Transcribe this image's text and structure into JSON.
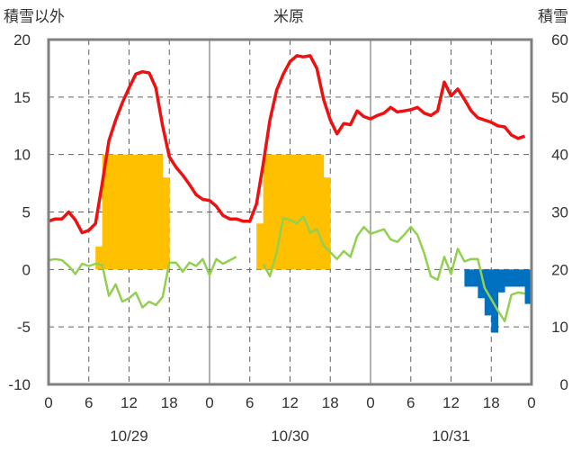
{
  "chart_data": {
    "type": "bar+line",
    "title": "米原",
    "left_axis_title": "積雪以外",
    "right_axis_title": "積雪",
    "left_ylim": [
      -10,
      20
    ],
    "left_yticks": [
      "20",
      "15",
      "10",
      "5",
      "0",
      "-5",
      "-10"
    ],
    "right_ylim": [
      0,
      60
    ],
    "right_yticks": [
      "60",
      "50",
      "40",
      "30",
      "20",
      "10",
      "0"
    ],
    "xlim_hours": [
      0,
      72
    ],
    "x_ticks": [
      {
        "hour": 0,
        "label": "0"
      },
      {
        "hour": 6,
        "label": "6"
      },
      {
        "hour": 12,
        "label": "12"
      },
      {
        "hour": 18,
        "label": "18"
      },
      {
        "hour": 24,
        "label": "0"
      },
      {
        "hour": 30,
        "label": "6"
      },
      {
        "hour": 36,
        "label": "12"
      },
      {
        "hour": 42,
        "label": "18"
      },
      {
        "hour": 48,
        "label": "0"
      },
      {
        "hour": 54,
        "label": "6"
      },
      {
        "hour": 60,
        "label": "12"
      },
      {
        "hour": 66,
        "label": "18"
      },
      {
        "hour": 72,
        "label": "0"
      }
    ],
    "dates": [
      {
        "hour": 12,
        "label": "10/29"
      },
      {
        "hour": 36,
        "label": "10/30"
      },
      {
        "hour": 60,
        "label": "10/31"
      }
    ],
    "grid": "dashed",
    "colors": {
      "temperature": "#ee1111",
      "green_line": "#92d050",
      "orange_bars": "#ffc000",
      "blue_bars": "#0070c0",
      "axis": "#808080",
      "grid": "#606060"
    },
    "temperature": [
      [
        0,
        4.2
      ],
      [
        1,
        4.4
      ],
      [
        2,
        4.4
      ],
      [
        3,
        5.0
      ],
      [
        4,
        4.3
      ],
      [
        5,
        3.2
      ],
      [
        6,
        3.4
      ],
      [
        7,
        4.0
      ],
      [
        8,
        7.5
      ],
      [
        9,
        11.2
      ],
      [
        10,
        13.0
      ],
      [
        11,
        14.5
      ],
      [
        12,
        15.8
      ],
      [
        13,
        17.0
      ],
      [
        14,
        17.2
      ],
      [
        15,
        17.1
      ],
      [
        16,
        15.8
      ],
      [
        17,
        12.5
      ],
      [
        18,
        9.8
      ],
      [
        19,
        8.9
      ],
      [
        20,
        8.2
      ],
      [
        21,
        7.4
      ],
      [
        22,
        6.5
      ],
      [
        23,
        6.1
      ],
      [
        24,
        6.0
      ],
      [
        25,
        5.5
      ],
      [
        26,
        4.7
      ],
      [
        27,
        4.4
      ],
      [
        28,
        4.4
      ],
      [
        29,
        4.2
      ],
      [
        30,
        4.2
      ],
      [
        31,
        5.7
      ],
      [
        32,
        9.2
      ],
      [
        33,
        13.0
      ],
      [
        34,
        15.6
      ],
      [
        35,
        17.0
      ],
      [
        36,
        18.1
      ],
      [
        37,
        18.6
      ],
      [
        38,
        18.5
      ],
      [
        39,
        18.6
      ],
      [
        40,
        17.5
      ],
      [
        41,
        14.8
      ],
      [
        42,
        13.0
      ],
      [
        43,
        11.8
      ],
      [
        44,
        12.7
      ],
      [
        45,
        12.6
      ],
      [
        46,
        13.8
      ],
      [
        47,
        13.3
      ],
      [
        48,
        13.1
      ],
      [
        49,
        13.4
      ],
      [
        50,
        13.6
      ],
      [
        51,
        14.1
      ],
      [
        52,
        13.7
      ],
      [
        53,
        13.8
      ],
      [
        54,
        13.9
      ],
      [
        55,
        14.1
      ],
      [
        56,
        13.6
      ],
      [
        57,
        13.4
      ],
      [
        58,
        13.8
      ],
      [
        59,
        16.3
      ],
      [
        60,
        15.1
      ],
      [
        61,
        15.7
      ],
      [
        62,
        14.8
      ],
      [
        63,
        13.8
      ],
      [
        64,
        13.2
      ],
      [
        65,
        13.0
      ],
      [
        66,
        12.8
      ],
      [
        67,
        12.5
      ],
      [
        68,
        12.4
      ],
      [
        69,
        11.7
      ],
      [
        70,
        11.4
      ],
      [
        71,
        11.6
      ]
    ],
    "green_line": [
      [
        [
          0,
          0.8
        ],
        [
          1,
          0.9
        ],
        [
          2,
          0.8
        ],
        [
          3,
          0.3
        ],
        [
          4,
          -0.4
        ],
        [
          5,
          0.5
        ],
        [
          6,
          0.3
        ],
        [
          7,
          0.5
        ],
        [
          8,
          0.4
        ],
        [
          9,
          -2.3
        ],
        [
          10,
          -1.3
        ],
        [
          11,
          -2.8
        ],
        [
          12,
          -2.5
        ],
        [
          13,
          -2.0
        ],
        [
          14,
          -3.3
        ],
        [
          15,
          -2.8
        ],
        [
          16,
          -3.1
        ],
        [
          17,
          -2.4
        ],
        [
          18,
          0.6
        ],
        [
          19,
          0.6
        ],
        [
          20,
          -0.2
        ],
        [
          21,
          0.6
        ],
        [
          22,
          0.3
        ],
        [
          23,
          0.9
        ],
        [
          24,
          -0.5
        ],
        [
          25,
          0.9
        ],
        [
          26,
          0.5
        ],
        [
          27,
          0.8
        ],
        [
          28,
          1.1
        ]
      ],
      [
        [
          32,
          0.5
        ],
        [
          33,
          -0.6
        ],
        [
          34,
          1.5
        ],
        [
          35,
          4.5
        ],
        [
          36,
          4.3
        ],
        [
          37,
          4.0
        ],
        [
          38,
          4.6
        ],
        [
          39,
          3.2
        ],
        [
          40,
          3.5
        ],
        [
          41,
          2.1
        ],
        [
          42,
          1.5
        ],
        [
          43,
          0.9
        ],
        [
          44,
          1.6
        ],
        [
          45,
          1.1
        ],
        [
          46,
          2.9
        ],
        [
          47,
          3.7
        ],
        [
          48,
          3.1
        ],
        [
          49,
          3.3
        ],
        [
          50,
          3.5
        ],
        [
          51,
          2.6
        ],
        [
          52,
          2.4
        ],
        [
          53,
          3.0
        ],
        [
          54,
          3.7
        ],
        [
          55,
          3.0
        ],
        [
          56,
          1.4
        ],
        [
          57,
          -0.6
        ],
        [
          58,
          -0.9
        ],
        [
          59,
          1.1
        ],
        [
          60,
          -0.4
        ],
        [
          61,
          1.8
        ],
        [
          62,
          0.7
        ],
        [
          63,
          0.9
        ],
        [
          64,
          0.9
        ],
        [
          65,
          -1.6
        ],
        [
          66,
          -2.6
        ],
        [
          67,
          -3.6
        ],
        [
          68,
          -4.5
        ],
        [
          69,
          -2.2
        ],
        [
          70,
          -2.0
        ],
        [
          71,
          -2.1
        ]
      ]
    ],
    "orange_bars": [
      [
        7,
        2
      ],
      [
        8,
        10
      ],
      [
        9,
        10
      ],
      [
        10,
        10
      ],
      [
        11,
        10
      ],
      [
        12,
        10
      ],
      [
        13,
        10
      ],
      [
        14,
        10
      ],
      [
        15,
        10
      ],
      [
        16,
        10
      ],
      [
        17,
        8
      ],
      [
        31,
        4
      ],
      [
        32,
        10
      ],
      [
        33,
        10
      ],
      [
        34,
        10
      ],
      [
        35,
        10
      ],
      [
        36,
        10
      ],
      [
        37,
        10
      ],
      [
        38,
        10
      ],
      [
        39,
        10
      ],
      [
        40,
        10
      ],
      [
        41,
        8
      ]
    ],
    "blue_bars": [
      [
        62,
        -1.5
      ],
      [
        63,
        -1.5
      ],
      [
        64,
        -2.5
      ],
      [
        65,
        -4.0
      ],
      [
        66,
        -5.5
      ],
      [
        67,
        -2.0
      ],
      [
        68,
        -1.5
      ],
      [
        69,
        -1.5
      ],
      [
        70,
        -1.5
      ],
      [
        71,
        -3.0
      ]
    ]
  }
}
